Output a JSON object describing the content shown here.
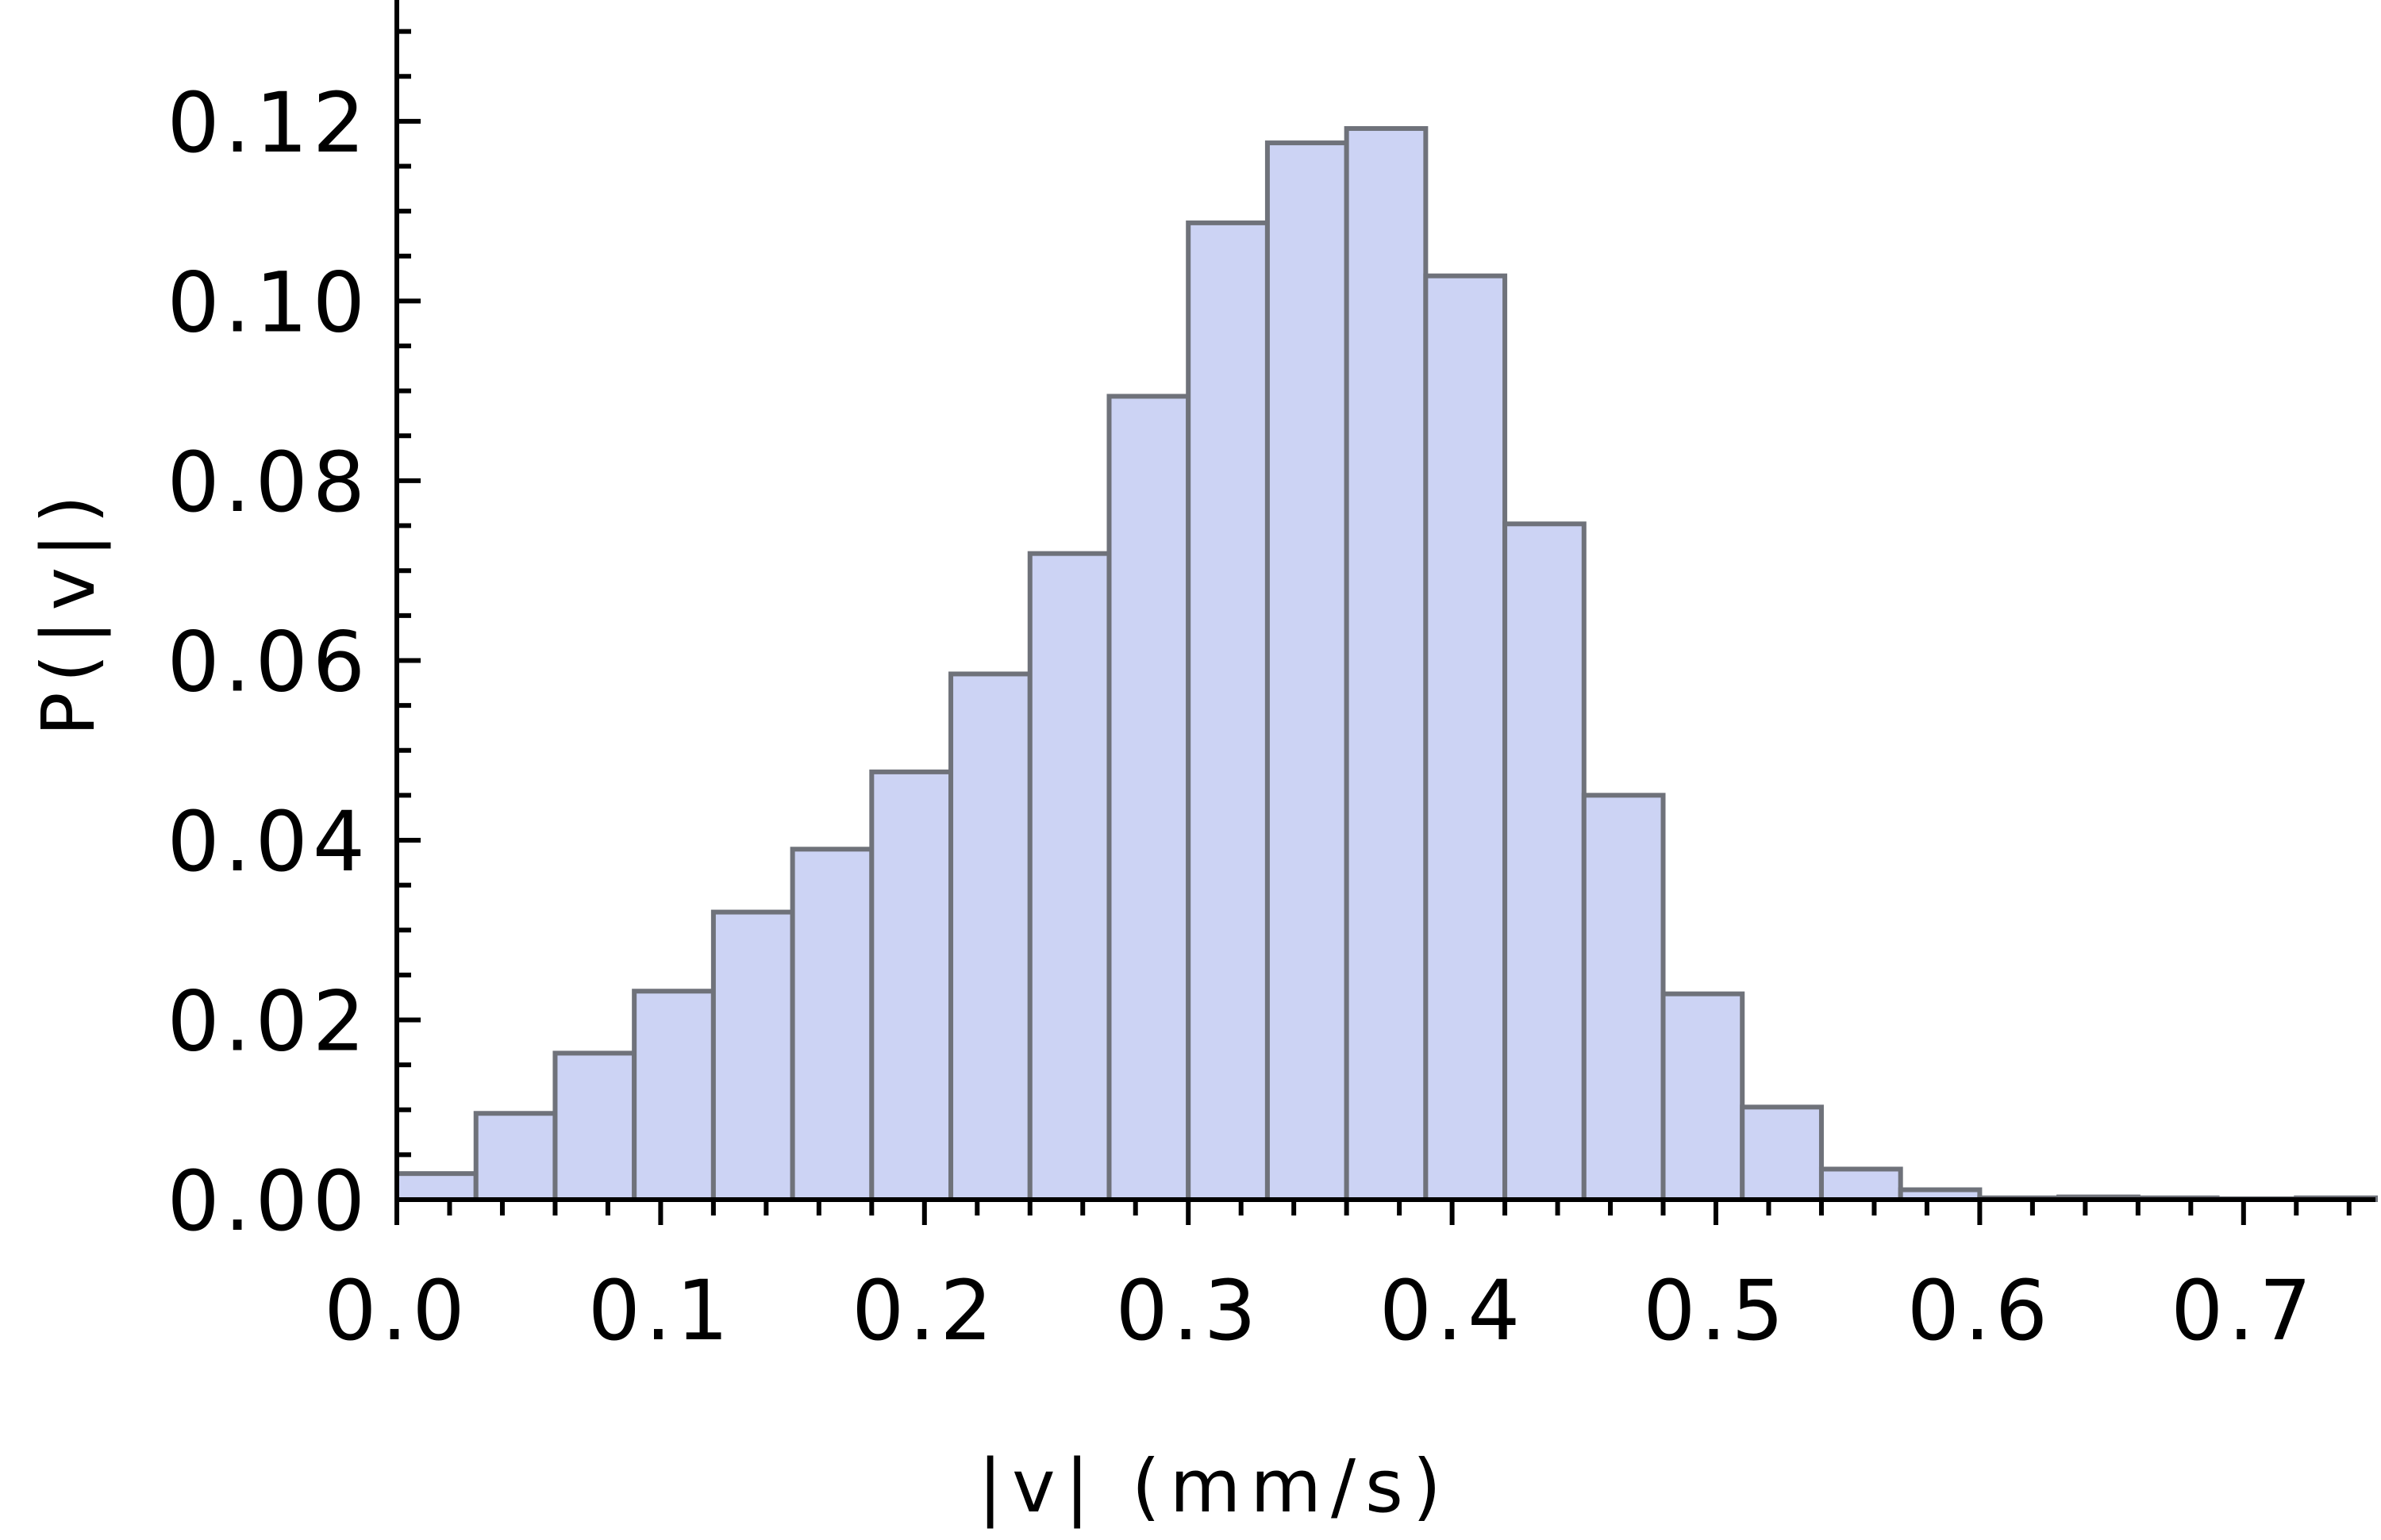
{
  "chart_data": {
    "type": "bar",
    "xlabel": "|v| (mm/s)",
    "ylabel": "P(|v|)",
    "xlim": [
      0,
      0.75
    ],
    "ylim": [
      0,
      0.1335
    ],
    "x_ticks": [
      "0.0",
      "0.1",
      "0.2",
      "0.3",
      "0.4",
      "0.5",
      "0.6",
      "0.7"
    ],
    "y_ticks": [
      "0.00",
      "0.02",
      "0.04",
      "0.06",
      "0.08",
      "0.10",
      "0.12"
    ],
    "bin_width": 0.03,
    "bins": [
      {
        "x0": 0.0,
        "x1": 0.03,
        "value": 0.0029
      },
      {
        "x0": 0.03,
        "x1": 0.06,
        "value": 0.0096
      },
      {
        "x0": 0.06,
        "x1": 0.09,
        "value": 0.0163
      },
      {
        "x0": 0.09,
        "x1": 0.12,
        "value": 0.0232
      },
      {
        "x0": 0.12,
        "x1": 0.15,
        "value": 0.032
      },
      {
        "x0": 0.15,
        "x1": 0.18,
        "value": 0.039
      },
      {
        "x0": 0.18,
        "x1": 0.21,
        "value": 0.0476
      },
      {
        "x0": 0.21,
        "x1": 0.24,
        "value": 0.0585
      },
      {
        "x0": 0.24,
        "x1": 0.27,
        "value": 0.0719
      },
      {
        "x0": 0.27,
        "x1": 0.3,
        "value": 0.0894
      },
      {
        "x0": 0.3,
        "x1": 0.33,
        "value": 0.1087
      },
      {
        "x0": 0.33,
        "x1": 0.36,
        "value": 0.1176
      },
      {
        "x0": 0.36,
        "x1": 0.39,
        "value": 0.1192
      },
      {
        "x0": 0.39,
        "x1": 0.42,
        "value": 0.1028
      },
      {
        "x0": 0.42,
        "x1": 0.45,
        "value": 0.0752
      },
      {
        "x0": 0.45,
        "x1": 0.48,
        "value": 0.045
      },
      {
        "x0": 0.48,
        "x1": 0.51,
        "value": 0.0229
      },
      {
        "x0": 0.51,
        "x1": 0.54,
        "value": 0.0103
      },
      {
        "x0": 0.54,
        "x1": 0.57,
        "value": 0.0034
      },
      {
        "x0": 0.57,
        "x1": 0.6,
        "value": 0.0011
      },
      {
        "x0": 0.6,
        "x1": 0.63,
        "value": 0.0002
      },
      {
        "x0": 0.63,
        "x1": 0.66,
        "value": 0.0003
      },
      {
        "x0": 0.66,
        "x1": 0.69,
        "value": 0.0002
      },
      {
        "x0": 0.69,
        "x1": 0.72,
        "value": 0.0001
      },
      {
        "x0": 0.72,
        "x1": 0.75,
        "value": 0.0002
      }
    ],
    "grid": false,
    "legend": "none",
    "colors": {
      "bar_fill": "#ccd3f4",
      "bar_edge": "#6f727a",
      "axis": "#000000"
    }
  }
}
